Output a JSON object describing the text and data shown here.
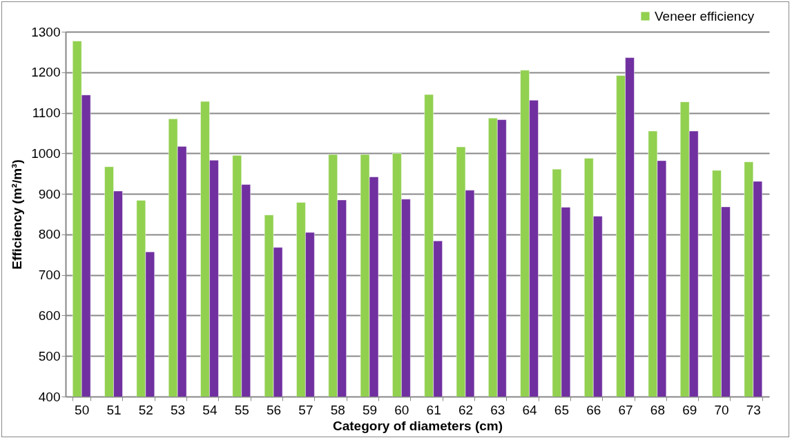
{
  "chart_data": {
    "type": "bar",
    "xlabel": "Category of diameters (cm)",
    "ylabel": "Efficiency (m²/m³)",
    "categories": [
      "50",
      "51",
      "52",
      "53",
      "54",
      "55",
      "56",
      "57",
      "58",
      "59",
      "60",
      "61",
      "62",
      "63",
      "64",
      "65",
      "66",
      "67",
      "68",
      "69",
      "70",
      "73"
    ],
    "series": [
      {
        "name": "Veneer efficiency",
        "color": "#92d050",
        "values": [
          1277,
          967,
          884,
          1085,
          1128,
          995,
          848,
          879,
          997,
          997,
          1000,
          1145,
          1016,
          1087,
          1205,
          961,
          988,
          1192,
          1055,
          1127,
          958,
          979
        ]
      },
      {
        "color": "#7030a0",
        "values": [
          1144,
          907,
          757,
          1017,
          983,
          923,
          768,
          805,
          885,
          942,
          887,
          784,
          909,
          1083,
          1131,
          867,
          845,
          1236,
          982,
          1055,
          868,
          931
        ]
      }
    ],
    "ylim": [
      400,
      1300
    ],
    "yticks": [
      400,
      500,
      600,
      700,
      800,
      900,
      1000,
      1100,
      1200,
      1300
    ],
    "grid": "y",
    "legend": "top right"
  }
}
